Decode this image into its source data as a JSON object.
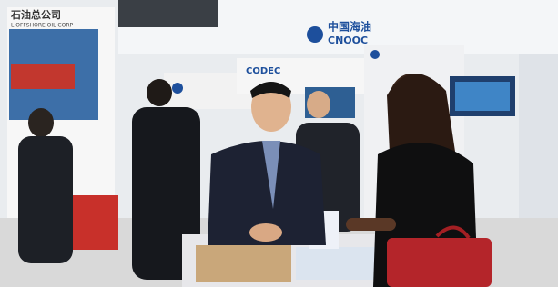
{
  "signs": [
    {
      "text": "石油总公司"
    },
    {
      "text": "L OFFSHORE OIL CORP"
    },
    {
      "text": "中国海油"
    },
    {
      "text": "CNOOC"
    },
    {
      "text": "CODEC"
    }
  ]
}
